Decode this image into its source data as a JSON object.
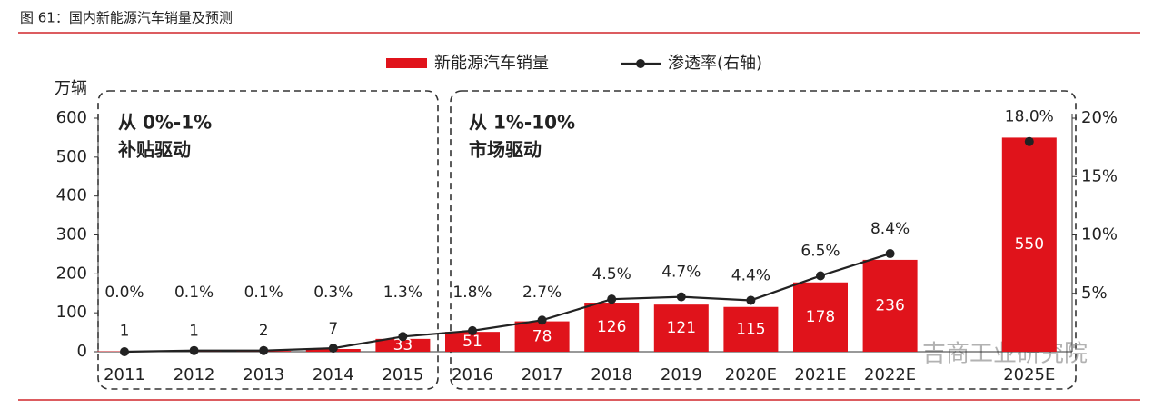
{
  "header": {
    "title": "图 61：国内新能源汽车销量及预测"
  },
  "chart_data": {
    "type": "bar-line",
    "y_axis_label": "万辆",
    "annotations": [
      "从 0%-1%",
      "补贴驱动",
      "从 1%-10%",
      "市场驱动"
    ],
    "watermark": "吉商工业研究院",
    "categories": [
      "2011",
      "2012",
      "2013",
      "2014",
      "2015",
      "2016",
      "2017",
      "2018",
      "2019",
      "2020E",
      "2021E",
      "2022E",
      null,
      "2025E"
    ],
    "series": [
      {
        "name": "新能源汽车销量",
        "type": "bar",
        "color": "#e0131b",
        "values": [
          1,
          1,
          2,
          7,
          33,
          51,
          78,
          126,
          121,
          115,
          178,
          236,
          null,
          550
        ]
      },
      {
        "name": "渗透率(右轴)",
        "type": "line",
        "axis": "y2",
        "color": "#222222",
        "values": [
          0.0,
          0.1,
          0.1,
          0.3,
          1.3,
          1.8,
          2.7,
          4.5,
          4.7,
          4.4,
          6.5,
          8.4,
          null,
          18.0
        ],
        "value_labels": [
          "0.0%",
          "0.1%",
          "0.1%",
          "0.3%",
          "1.3%",
          "1.8%",
          "2.7%",
          "4.5%",
          "4.7%",
          "4.4%",
          "6.5%",
          "8.4%",
          null,
          "18.0%"
        ]
      }
    ],
    "ylim": [
      0,
      600
    ],
    "yticks": [
      0,
      100,
      200,
      300,
      400,
      500,
      600
    ],
    "y2lim": [
      0,
      20
    ],
    "y2ticks": [
      {
        "value": 5,
        "label": "5%"
      },
      {
        "value": 10,
        "label": "10%"
      },
      {
        "value": 15,
        "label": "15%"
      },
      {
        "value": 20,
        "label": "20%"
      }
    ]
  }
}
